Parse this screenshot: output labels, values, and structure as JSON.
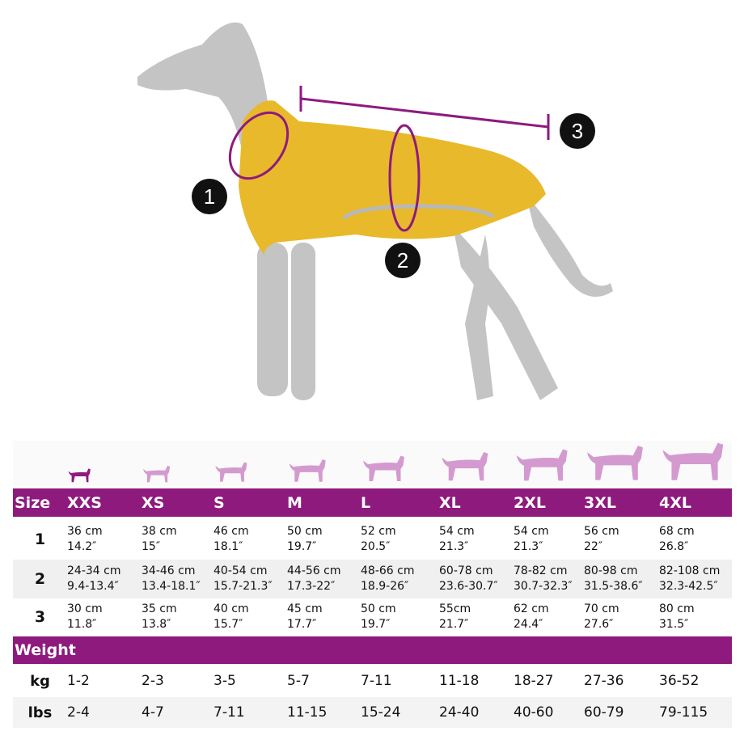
{
  "colors": {
    "accent": "#8e1a7e",
    "coat": "#e8b92a",
    "dog": "#bfbfbf",
    "icon_pink": "#d49ad0"
  },
  "diagram": {
    "markers": [
      "1",
      "2",
      "3"
    ]
  },
  "icons": [
    "dog-xxs-icon",
    "dog-xs-icon",
    "dog-s-icon",
    "dog-m-icon",
    "dog-l-icon",
    "dog-xl-icon",
    "dog-2xl-icon",
    "dog-3xl-icon",
    "dog-4xl-icon"
  ],
  "header": {
    "label": "Size",
    "sizes": [
      "XXS",
      "XS",
      "S",
      "M",
      "L",
      "XL",
      "2XL",
      "3XL",
      "4XL"
    ]
  },
  "rows": [
    {
      "label": "1",
      "cells": [
        [
          "36 cm",
          "14.2″"
        ],
        [
          "38 cm",
          "15″"
        ],
        [
          "46 cm",
          "18.1″"
        ],
        [
          "50 cm",
          "19.7″"
        ],
        [
          "52 cm",
          "20.5″"
        ],
        [
          "54 cm",
          "21.3″"
        ],
        [
          "54 cm",
          "21.3″"
        ],
        [
          "56 cm",
          "22″"
        ],
        [
          "68 cm",
          "26.8″"
        ]
      ]
    },
    {
      "label": "2",
      "cells": [
        [
          "24-34 cm",
          "9.4-13.4″"
        ],
        [
          "34-46 cm",
          "13.4-18.1″"
        ],
        [
          "40-54 cm",
          "15.7-21.3″"
        ],
        [
          "44-56 cm",
          "17.3-22″"
        ],
        [
          "48-66 cm",
          "18.9-26″"
        ],
        [
          "60-78 cm",
          "23.6-30.7″"
        ],
        [
          "78-82 cm",
          "30.7-32.3″"
        ],
        [
          "80-98 cm",
          "31.5-38.6″"
        ],
        [
          "82-108 cm",
          "32.3-42.5″"
        ]
      ]
    },
    {
      "label": "3",
      "cells": [
        [
          "30 cm",
          "11.8″"
        ],
        [
          "35 cm",
          "13.8″"
        ],
        [
          "40 cm",
          "15.7″"
        ],
        [
          "45 cm",
          "17.7″"
        ],
        [
          "50 cm",
          "19.7″"
        ],
        [
          "55cm",
          "21.7″"
        ],
        [
          "62 cm",
          "24.4″"
        ],
        [
          "70 cm",
          "27.6″"
        ],
        [
          "80 cm",
          "31.5″"
        ]
      ]
    }
  ],
  "weight": {
    "title": "Weight",
    "kg": {
      "label": "kg",
      "values": [
        "1-2",
        "2-3",
        "3-5",
        "5-7",
        "7-11",
        "11-18",
        "18-27",
        "27-36",
        "36-52"
      ]
    },
    "lbs": {
      "label": "lbs",
      "values": [
        "2-4",
        "4-7",
        "7-11",
        "11-15",
        "15-24",
        "24-40",
        "40-60",
        "60-79",
        "79-115"
      ]
    }
  }
}
